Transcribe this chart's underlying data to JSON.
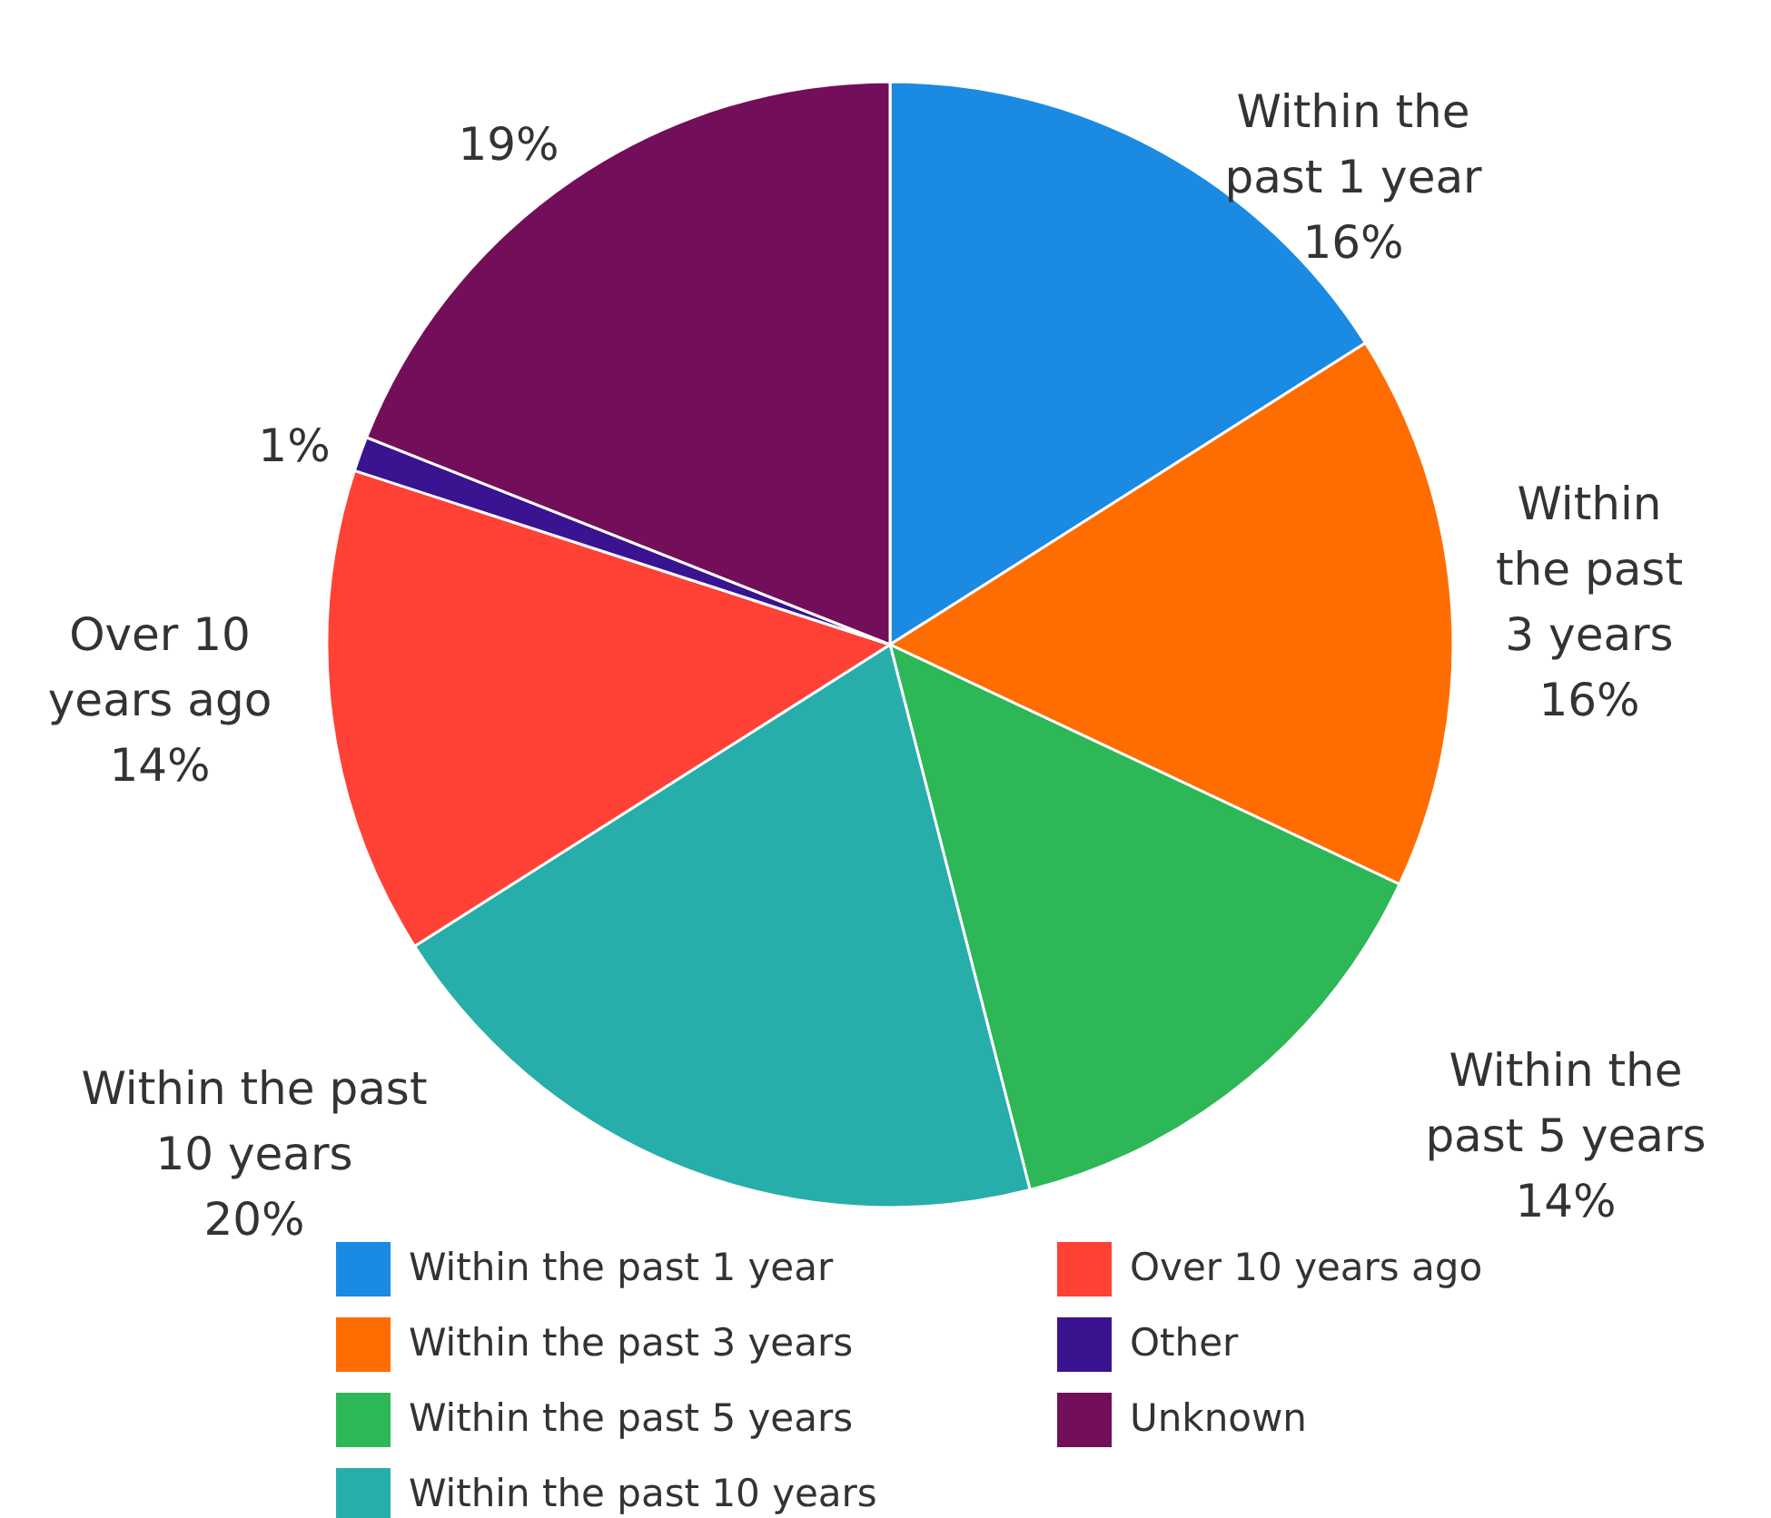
{
  "chart_data": {
    "type": "pie",
    "categories": [
      "Within the past 1 year",
      "Within the past 3 years",
      "Within the past 5 years",
      "Within the past 10 years",
      "Over 10 years ago",
      "Other",
      "Unknown"
    ],
    "values": [
      16,
      16,
      14,
      20,
      14,
      1,
      19
    ],
    "colors": [
      "#1a8ae3",
      "#ff6d00",
      "#2db757",
      "#27aeab",
      "#ff4136",
      "#3a1390",
      "#730f5a"
    ],
    "value_labels": [
      "Within the\npast 1 year\n16%",
      "Within\nthe past\n3 years\n16%",
      "Within the\npast 5 years\n14%",
      "Within the past\n10 years\n20%",
      "Over 10\nyears ago\n14%",
      "1%",
      "19%"
    ],
    "legend": "bottom"
  }
}
